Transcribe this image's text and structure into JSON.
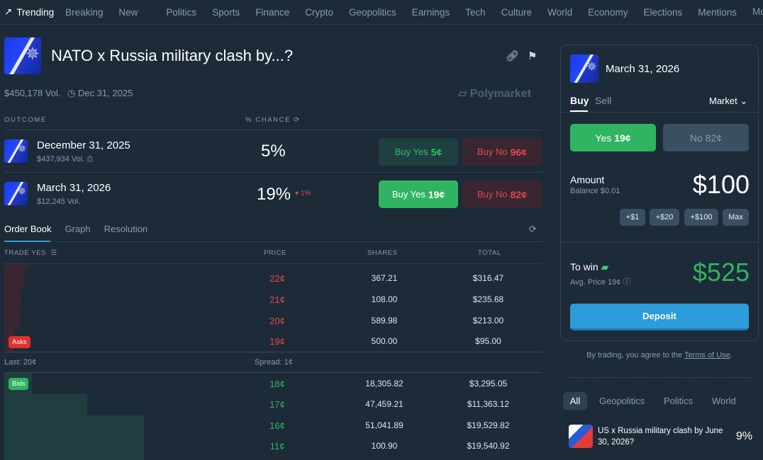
{
  "nav": {
    "trending": "Trending",
    "items": [
      "Breaking",
      "New"
    ],
    "categories": [
      "Politics",
      "Sports",
      "Finance",
      "Crypto",
      "Geopolitics",
      "Earnings",
      "Tech",
      "Culture",
      "World",
      "Economy",
      "Elections",
      "Mentions"
    ],
    "more": "More"
  },
  "market": {
    "title": "NATO x Russia military clash by...?",
    "volume": "$450,178 Vol.",
    "end_date": "Dec 31, 2025",
    "brand": "Polymarket"
  },
  "outcomes_header": {
    "outcome": "OUTCOME",
    "chance": "% CHANCE"
  },
  "outcomes": [
    {
      "name": "December 31, 2025",
      "volume": "$437,934 Vol.",
      "chance": "5%",
      "change": "",
      "buy_yes": "Buy Yes",
      "yes_price": "5¢",
      "buy_no": "Buy No",
      "no_price": "96¢"
    },
    {
      "name": "March 31, 2026",
      "volume": "$12,245 Vol.",
      "chance": "19%",
      "change": "1%",
      "buy_yes": "Buy Yes",
      "yes_price": "19¢",
      "buy_no": "Buy No",
      "no_price": "82¢"
    }
  ],
  "tabs": [
    "Order Book",
    "Graph",
    "Resolution"
  ],
  "orderbook": {
    "headers": {
      "trade": "TRADE YES",
      "price": "PRICE",
      "shares": "SHARES",
      "total": "TOTAL"
    },
    "asks_label": "Asks",
    "bids_label": "Bids",
    "last": "Last: 20¢",
    "spread": "Spread: 1¢",
    "asks": [
      {
        "price": "22¢",
        "shares": "367.21",
        "total": "$316.47"
      },
      {
        "price": "21¢",
        "shares": "108.00",
        "total": "$235.68"
      },
      {
        "price": "20¢",
        "shares": "589.98",
        "total": "$213.00"
      },
      {
        "price": "19¢",
        "shares": "500.00",
        "total": "$95.00"
      }
    ],
    "bids": [
      {
        "price": "18¢",
        "shares": "18,305.82",
        "total": "$3,295.05"
      },
      {
        "price": "17¢",
        "shares": "47,459.21",
        "total": "$11,363.12"
      },
      {
        "price": "16¢",
        "shares": "51,041.89",
        "total": "$19,529.82"
      },
      {
        "price": "11¢",
        "shares": "100.90",
        "total": "$19,540.92"
      }
    ]
  },
  "trade_panel": {
    "outcome": "March 31, 2026",
    "buy": "Buy",
    "sell": "Sell",
    "order_type": "Market",
    "yes": "Yes",
    "yes_price": "19¢",
    "no": "No",
    "no_price": "82¢",
    "amount_label": "Amount",
    "balance": "Balance $0.01",
    "amount": "$100",
    "chips": [
      "+$1",
      "+$20",
      "+$100",
      "Max"
    ],
    "to_win_label": "To win",
    "avg_price": "Avg. Price 19¢",
    "to_win": "$525",
    "deposit": "Deposit"
  },
  "terms": {
    "prefix": "By trading, you agree to the ",
    "link": "Terms of Use",
    "suffix": "."
  },
  "related": {
    "tabs": [
      "All",
      "Geopolitics",
      "Politics",
      "World"
    ],
    "items": [
      {
        "title": "US x Russia military clash by June 30, 2026?",
        "chance": "9%"
      }
    ]
  },
  "colors": {
    "green": "#30b461",
    "red": "#e34848",
    "blue": "#2d9cdb",
    "bg": "#1d2b39"
  }
}
